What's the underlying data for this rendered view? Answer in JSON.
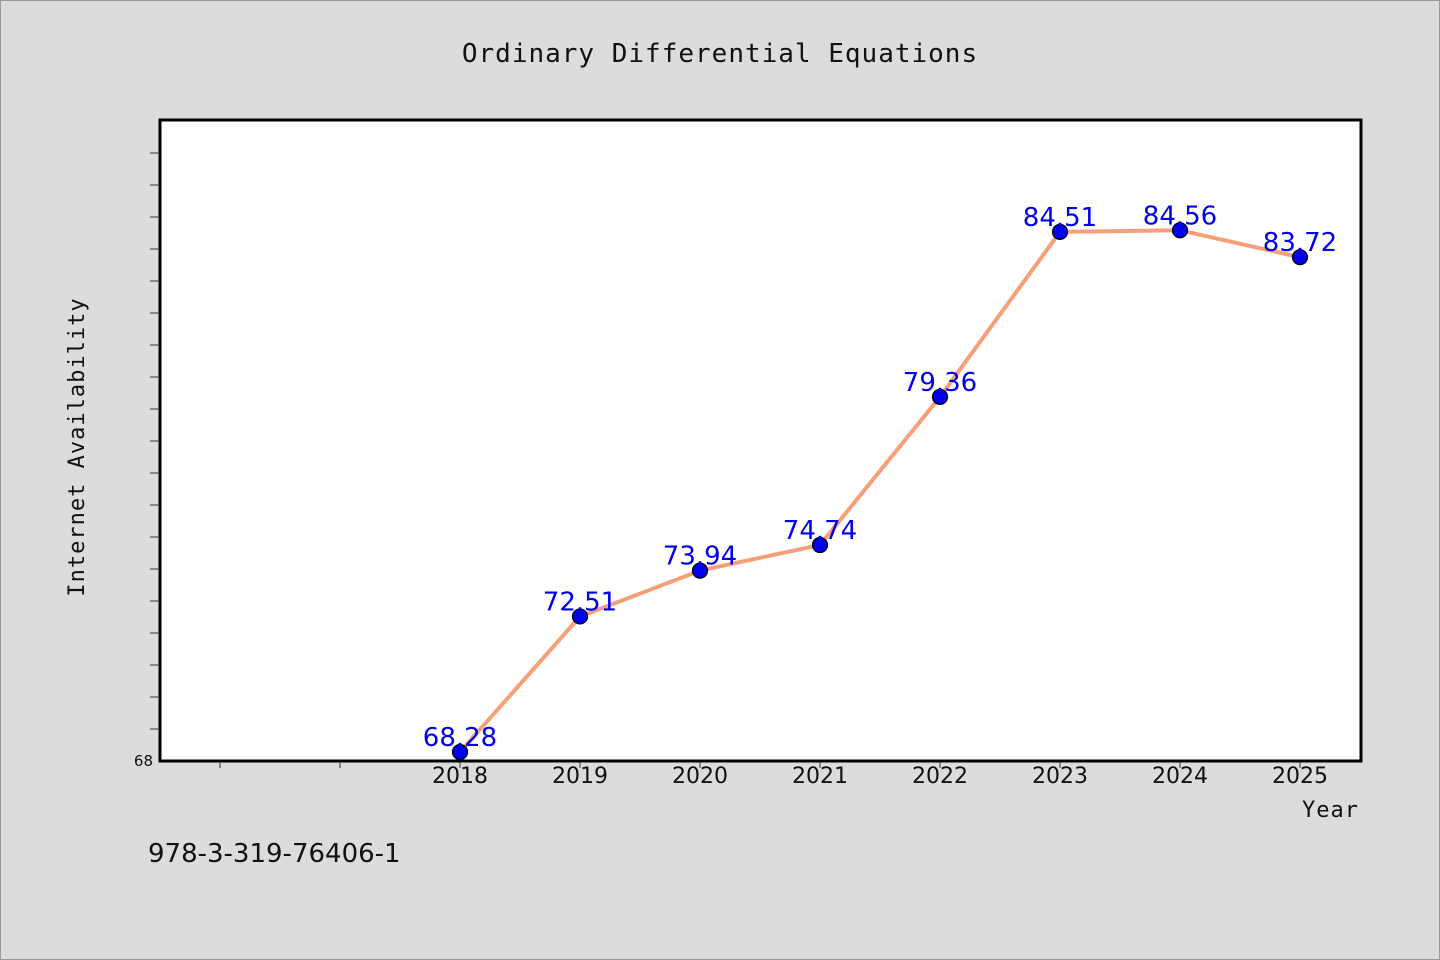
{
  "chart_data": {
    "type": "line",
    "title": "Ordinary Differential Equations",
    "xlabel": "Year",
    "ylabel": "Internet Availability",
    "categories": [
      "2018",
      "2019",
      "2020",
      "2021",
      "2022",
      "2023",
      "2024",
      "2025"
    ],
    "series": [
      {
        "values": [
          68.28,
          72.51,
          73.94,
          74.74,
          79.36,
          84.51,
          84.56,
          83.72
        ],
        "data_labels": [
          "68.28",
          "72.51",
          "73.94",
          "74.74",
          "79.36",
          "84.51",
          "84.56",
          "83.72"
        ]
      }
    ],
    "ylim": [
      68,
      88
    ],
    "yticks": [
      "68"
    ],
    "grid": false,
    "legend": "none",
    "colors": {
      "line": "#f5a07a",
      "marker": "#0000ee",
      "data_label": "#0000ee",
      "plot_background": "#ffffff",
      "page_background": "#dcdcdc"
    }
  },
  "footer": {
    "isbn": "978-3-319-76406-1"
  }
}
